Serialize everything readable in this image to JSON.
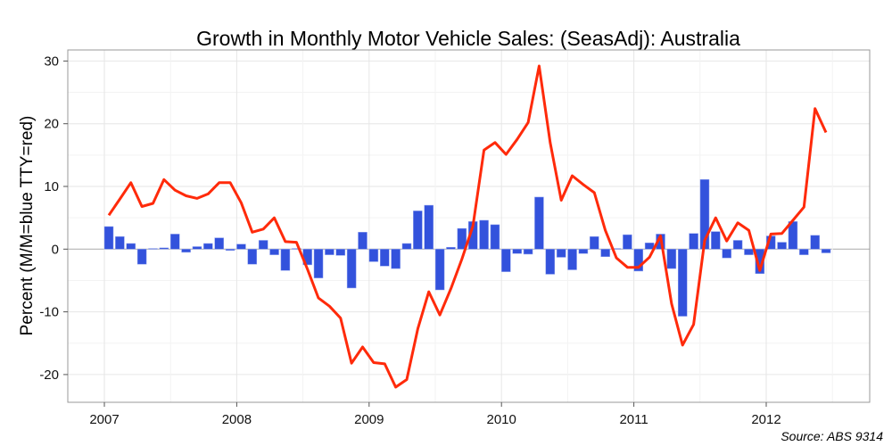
{
  "chart_data": {
    "type": "bar+line",
    "title": "Growth in Monthly Motor Vehicle Sales:  (SeasAdj): Australia",
    "xlabel": "",
    "ylabel": "Percent (M/M=blue TTY=red)",
    "source": "Source: ABS 9314",
    "start_month": "2007-01",
    "end_month": "2012-06",
    "x_ticks": [
      "2007",
      "2008",
      "2009",
      "2010",
      "2011",
      "2012"
    ],
    "y_ticks": [
      -20,
      -10,
      0,
      10,
      20,
      30
    ],
    "ylim": [
      -23.5,
      31.5
    ],
    "grid": true,
    "colors": {
      "mm": "#3352dc",
      "tty": "#ff2a0a"
    },
    "series": [
      {
        "type": "bar",
        "key": "mm",
        "values": [
          3.6,
          2.0,
          0.9,
          -2.4,
          0.1,
          0.2,
          2.4,
          -0.5,
          0.4,
          0.9,
          1.8,
          -0.2,
          0.8,
          -2.4,
          1.4,
          -0.9,
          -3.4,
          0.1,
          -2.5,
          -4.6,
          -0.9,
          -1.0,
          -6.2,
          2.7,
          -2.0,
          -2.7,
          -3.1,
          0.9,
          6.1,
          7.0,
          -6.5,
          0.3,
          3.3,
          4.4,
          4.6,
          3.9,
          -3.6,
          -0.7,
          -0.8,
          8.3,
          -4.0,
          -1.3,
          -3.3,
          -0.7,
          2.0,
          -1.2,
          0.1,
          2.3,
          -3.5,
          1.0,
          2.4,
          -3.1,
          -10.7,
          2.5,
          11.1,
          2.8,
          -1.4,
          1.4,
          -0.9,
          -3.9,
          2.1,
          1.1,
          4.4,
          -0.9,
          2.2,
          -0.6
        ]
      },
      {
        "type": "line",
        "key": "tty",
        "values": [
          5.4,
          8.0,
          10.6,
          6.8,
          7.3,
          11.1,
          9.4,
          8.5,
          8.1,
          8.8,
          10.6,
          10.6,
          7.4,
          2.7,
          3.2,
          5.0,
          1.2,
          1.1,
          -3.2,
          -7.8,
          -9.1,
          -11.0,
          -18.2,
          -15.6,
          -18.1,
          -18.3,
          -22.0,
          -20.8,
          -12.7,
          -6.8,
          -10.5,
          -6.3,
          -1.6,
          3.7,
          15.8,
          17.0,
          15.1,
          17.5,
          20.2,
          29.2,
          17.0,
          7.8,
          11.7,
          10.3,
          9.0,
          3.0,
          -1.4,
          -2.9,
          -2.9,
          -1.3,
          2.1,
          -8.7,
          -15.3,
          -12.0,
          1.4,
          5.0,
          1.3,
          4.2,
          3.0,
          -3.4,
          2.4,
          2.5,
          4.6,
          6.7,
          22.4,
          18.6
        ]
      }
    ]
  }
}
